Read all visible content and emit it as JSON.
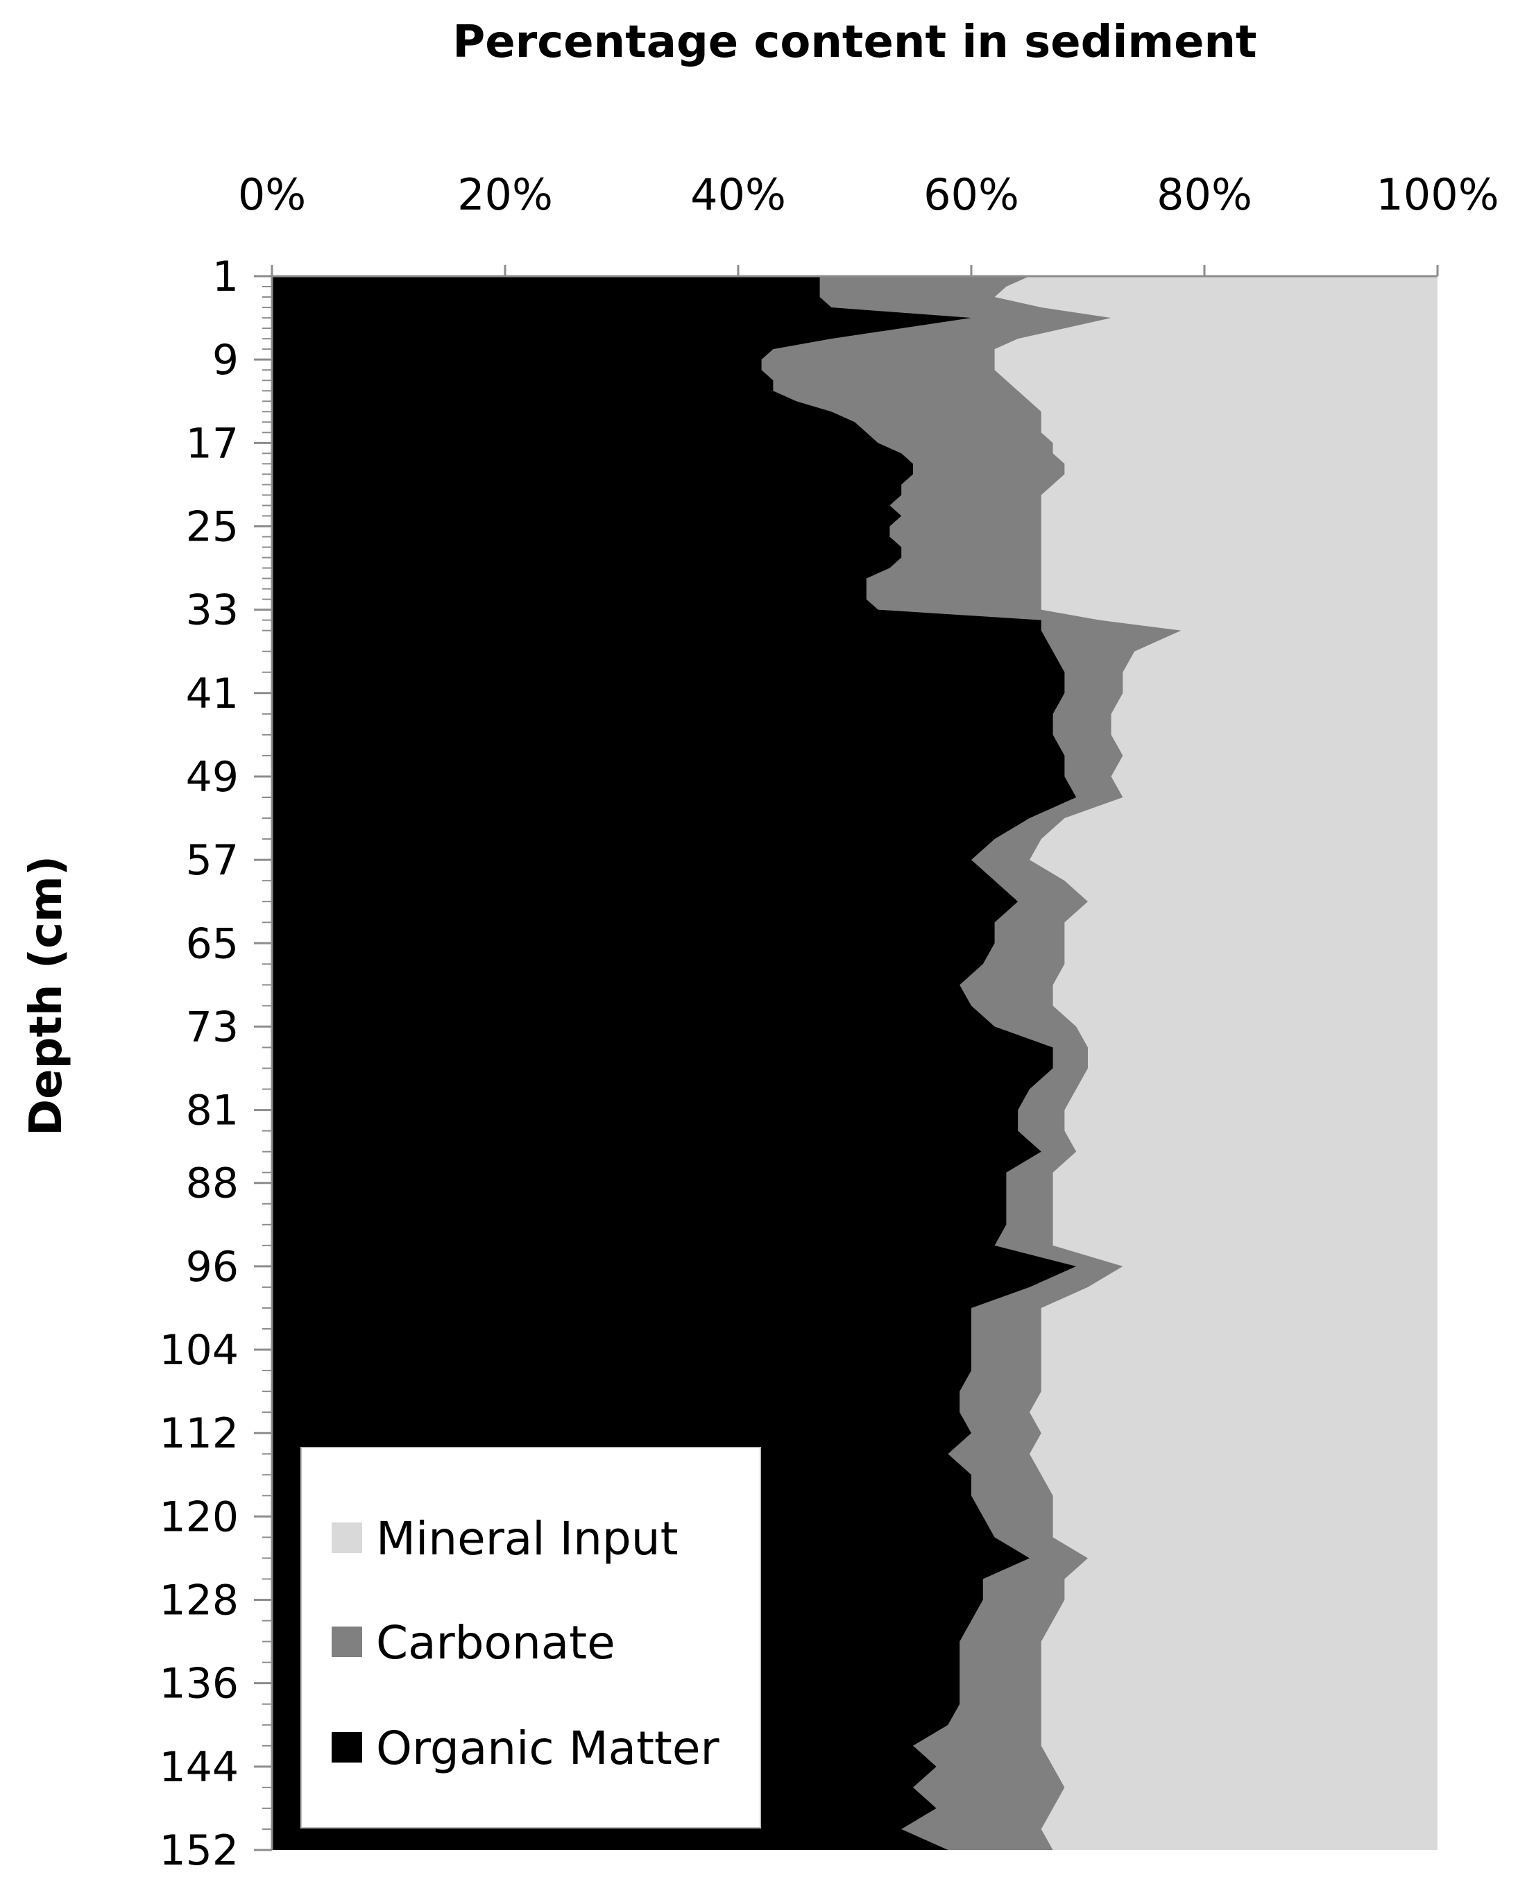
{
  "chart_data": {
    "type": "area",
    "title": "Percentage content in sediment",
    "ylabel": "Depth (cm)",
    "xlabel": "",
    "x_axis_position": "top",
    "xlim": [
      0,
      100
    ],
    "x_ticks": [
      "0%",
      "20%",
      "40%",
      "60%",
      "80%",
      "100%"
    ],
    "x_tick_values": [
      0,
      20,
      40,
      60,
      80,
      100
    ],
    "y_tick_labels": [
      "1",
      "9",
      "17",
      "25",
      "33",
      "41",
      "49",
      "57",
      "65",
      "73",
      "81",
      "88",
      "96",
      "104",
      "112",
      "120",
      "128",
      "136",
      "144",
      "152"
    ],
    "depth_range": [
      1,
      152
    ],
    "legend_position": "bottom-left",
    "stacking": "cumulative-percent",
    "depths": [
      1,
      2,
      3,
      4,
      5,
      6,
      7,
      8,
      9,
      10,
      11,
      12,
      13,
      14,
      15,
      16,
      17,
      18,
      19,
      20,
      21,
      22,
      23,
      24,
      25,
      26,
      27,
      28,
      29,
      30,
      31,
      32,
      33,
      34,
      35,
      37,
      39,
      41,
      43,
      45,
      47,
      49,
      51,
      53,
      55,
      57,
      59,
      61,
      63,
      65,
      67,
      69,
      71,
      73,
      75,
      77,
      79,
      81,
      83,
      85,
      87,
      88,
      90,
      92,
      94,
      96,
      98,
      100,
      102,
      104,
      106,
      108,
      110,
      112,
      114,
      116,
      118,
      120,
      122,
      124,
      126,
      128,
      130,
      132,
      134,
      136,
      138,
      140,
      142,
      144,
      146,
      148,
      150,
      152
    ],
    "series": [
      {
        "name": "Organic Matter",
        "color": "#000000",
        "cumulative_upper": [
          47,
          47,
          47,
          48,
          60,
          54,
          48,
          43,
          42,
          42,
          43,
          43,
          45,
          48,
          50,
          51,
          52,
          54,
          55,
          55,
          54,
          54,
          53,
          54,
          53,
          53,
          54,
          54,
          53,
          51,
          51,
          51,
          52,
          66,
          66,
          67,
          68,
          68,
          67,
          67,
          68,
          68,
          69,
          65,
          62,
          60,
          62,
          64,
          62,
          62,
          61,
          59,
          60,
          62,
          67,
          67,
          65,
          64,
          64,
          66,
          63,
          63,
          63,
          63,
          62,
          69,
          65,
          60,
          60,
          60,
          60,
          59,
          59,
          60,
          58,
          60,
          60,
          61,
          62,
          65,
          61,
          61,
          60,
          59,
          59,
          59,
          59,
          58,
          55,
          57,
          55,
          57,
          54,
          58
        ],
        "values": [
          47,
          47,
          47,
          48,
          60,
          54,
          48,
          43,
          42,
          42,
          43,
          43,
          45,
          48,
          50,
          51,
          52,
          54,
          55,
          55,
          54,
          54,
          53,
          54,
          53,
          53,
          54,
          54,
          53,
          51,
          51,
          51,
          52,
          66,
          66,
          67,
          68,
          68,
          67,
          67,
          68,
          68,
          69,
          65,
          62,
          60,
          62,
          64,
          62,
          62,
          61,
          59,
          60,
          62,
          67,
          67,
          65,
          64,
          64,
          66,
          63,
          63,
          63,
          63,
          62,
          69,
          65,
          60,
          60,
          60,
          60,
          59,
          59,
          60,
          58,
          60,
          60,
          61,
          62,
          65,
          61,
          61,
          60,
          59,
          59,
          59,
          59,
          58,
          55,
          57,
          55,
          57,
          54,
          58
        ]
      },
      {
        "name": "Carbonate",
        "color": "#808080",
        "cumulative_upper": [
          65,
          63,
          62,
          66,
          72,
          68,
          64,
          62,
          62,
          62,
          63,
          64,
          65,
          66,
          66,
          66,
          67,
          67,
          68,
          68,
          67,
          66,
          66,
          66,
          66,
          66,
          66,
          66,
          66,
          66,
          66,
          66,
          66,
          71,
          78,
          74,
          73,
          73,
          72,
          72,
          73,
          72,
          73,
          68,
          66,
          65,
          68,
          70,
          68,
          68,
          68,
          67,
          67,
          69,
          70,
          70,
          69,
          68,
          68,
          69,
          67,
          67,
          67,
          67,
          67,
          73,
          70,
          66,
          66,
          66,
          66,
          66,
          65,
          66,
          65,
          66,
          67,
          67,
          67,
          70,
          68,
          68,
          67,
          66,
          66,
          66,
          66,
          66,
          66,
          67,
          68,
          67,
          66,
          67
        ],
        "values": [
          18,
          16,
          15,
          18,
          12,
          14,
          16,
          19,
          20,
          20,
          20,
          21,
          20,
          18,
          16,
          15,
          15,
          13,
          13,
          13,
          13,
          12,
          13,
          12,
          13,
          13,
          12,
          12,
          13,
          15,
          15,
          15,
          14,
          5,
          12,
          7,
          5,
          5,
          5,
          5,
          5,
          4,
          4,
          3,
          4,
          5,
          6,
          6,
          6,
          6,
          7,
          8,
          7,
          7,
          3,
          3,
          4,
          4,
          4,
          3,
          4,
          4,
          4,
          4,
          5,
          4,
          5,
          6,
          6,
          6,
          6,
          7,
          6,
          6,
          7,
          6,
          7,
          6,
          5,
          5,
          7,
          7,
          7,
          7,
          7,
          7,
          7,
          8,
          11,
          10,
          13,
          10,
          12,
          9
        ]
      },
      {
        "name": "Mineral Input",
        "color": "#d9d9d9",
        "cumulative_upper_constant": 100,
        "values": [
          35,
          37,
          38,
          34,
          28,
          32,
          36,
          38,
          38,
          38,
          37,
          36,
          35,
          34,
          34,
          34,
          33,
          33,
          32,
          32,
          33,
          34,
          34,
          34,
          34,
          34,
          34,
          34,
          34,
          34,
          34,
          34,
          34,
          29,
          22,
          26,
          27,
          27,
          28,
          28,
          27,
          28,
          27,
          32,
          34,
          35,
          32,
          30,
          32,
          32,
          32,
          33,
          33,
          31,
          30,
          30,
          31,
          32,
          32,
          31,
          33,
          33,
          33,
          33,
          33,
          27,
          30,
          34,
          34,
          34,
          34,
          34,
          35,
          34,
          35,
          34,
          33,
          33,
          33,
          30,
          32,
          32,
          33,
          34,
          34,
          34,
          34,
          34,
          34,
          33,
          32,
          33,
          34,
          33
        ]
      }
    ],
    "legend": [
      "Mineral Input",
      "Carbonate",
      "Organic Matter"
    ]
  }
}
